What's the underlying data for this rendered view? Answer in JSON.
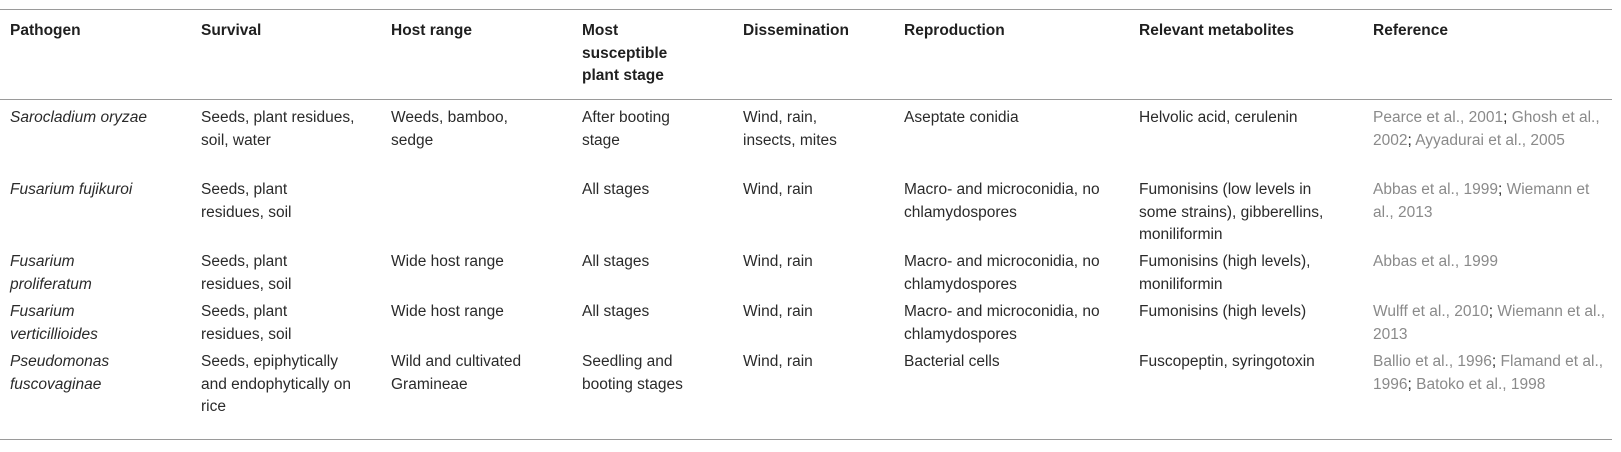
{
  "headers": [
    "Pathogen",
    "Survival",
    "Host range",
    "Most susceptible plant stage",
    "Dissemination",
    "Reproduction",
    "Relevant metabolites",
    "Reference"
  ],
  "rows": [
    {
      "pathogen": "Sarocladium oryzae",
      "survival": "Seeds, plant residues, soil, water",
      "host_range": "Weeds, bamboo, sedge",
      "stage": "After booting stage",
      "dissemination": "Wind, rain, insects, mites",
      "reproduction": "Aseptate conidia",
      "metabolites": "Helvolic acid, cerulenin",
      "references": [
        "Pearce et al., 2001",
        "Ghosh et al., 2002",
        "Ayyadurai et al., 2005"
      ]
    },
    {
      "pathogen": "Fusarium fujikuroi",
      "survival": "Seeds, plant residues, soil",
      "host_range": "",
      "stage": "All stages",
      "dissemination": "Wind, rain",
      "reproduction": "Macro- and microconidia, no chlamydospores",
      "metabolites": "Fumonisins (low levels in some strains), gibberellins, moniliformin",
      "references": [
        "Abbas et al., 1999",
        "Wiemann et al., 2013"
      ]
    },
    {
      "pathogen": "Fusarium proliferatum",
      "survival": "Seeds, plant residues, soil",
      "host_range": "Wide host range",
      "stage": "All stages",
      "dissemination": "Wind, rain",
      "reproduction": "Macro- and microconidia, no chlamydospores",
      "metabolites": "Fumonisins (high levels), moniliformin",
      "references": [
        "Abbas et al., 1999"
      ]
    },
    {
      "pathogen": "Fusarium verticillioides",
      "survival": "Seeds, plant residues, soil",
      "host_range": "Wide host range",
      "stage": "All stages",
      "dissemination": "Wind, rain",
      "reproduction": "Macro- and microconidia, no chlamydospores",
      "metabolites": "Fumonisins (high levels)",
      "references": [
        "Wulff et al., 2010",
        "Wiemann et al., 2013"
      ]
    },
    {
      "pathogen": "Pseudomonas fuscovaginae",
      "survival": "Seeds, epiphytically and endophytically on rice",
      "host_range": "Wild and cultivated Gramineae",
      "stage": "Seedling and booting stages",
      "dissemination": "Wind, rain",
      "reproduction": "Bacterial cells",
      "metabolites": "Fuscopeptin, syringotoxin",
      "references": [
        "Ballio et al., 1996",
        "Flamand et al., 1996",
        "Batoko et al., 1998"
      ]
    }
  ],
  "colors": {
    "text": "#2a2a2a",
    "reference_link": "#8a8a8a",
    "rule": "#9a9a9a"
  }
}
